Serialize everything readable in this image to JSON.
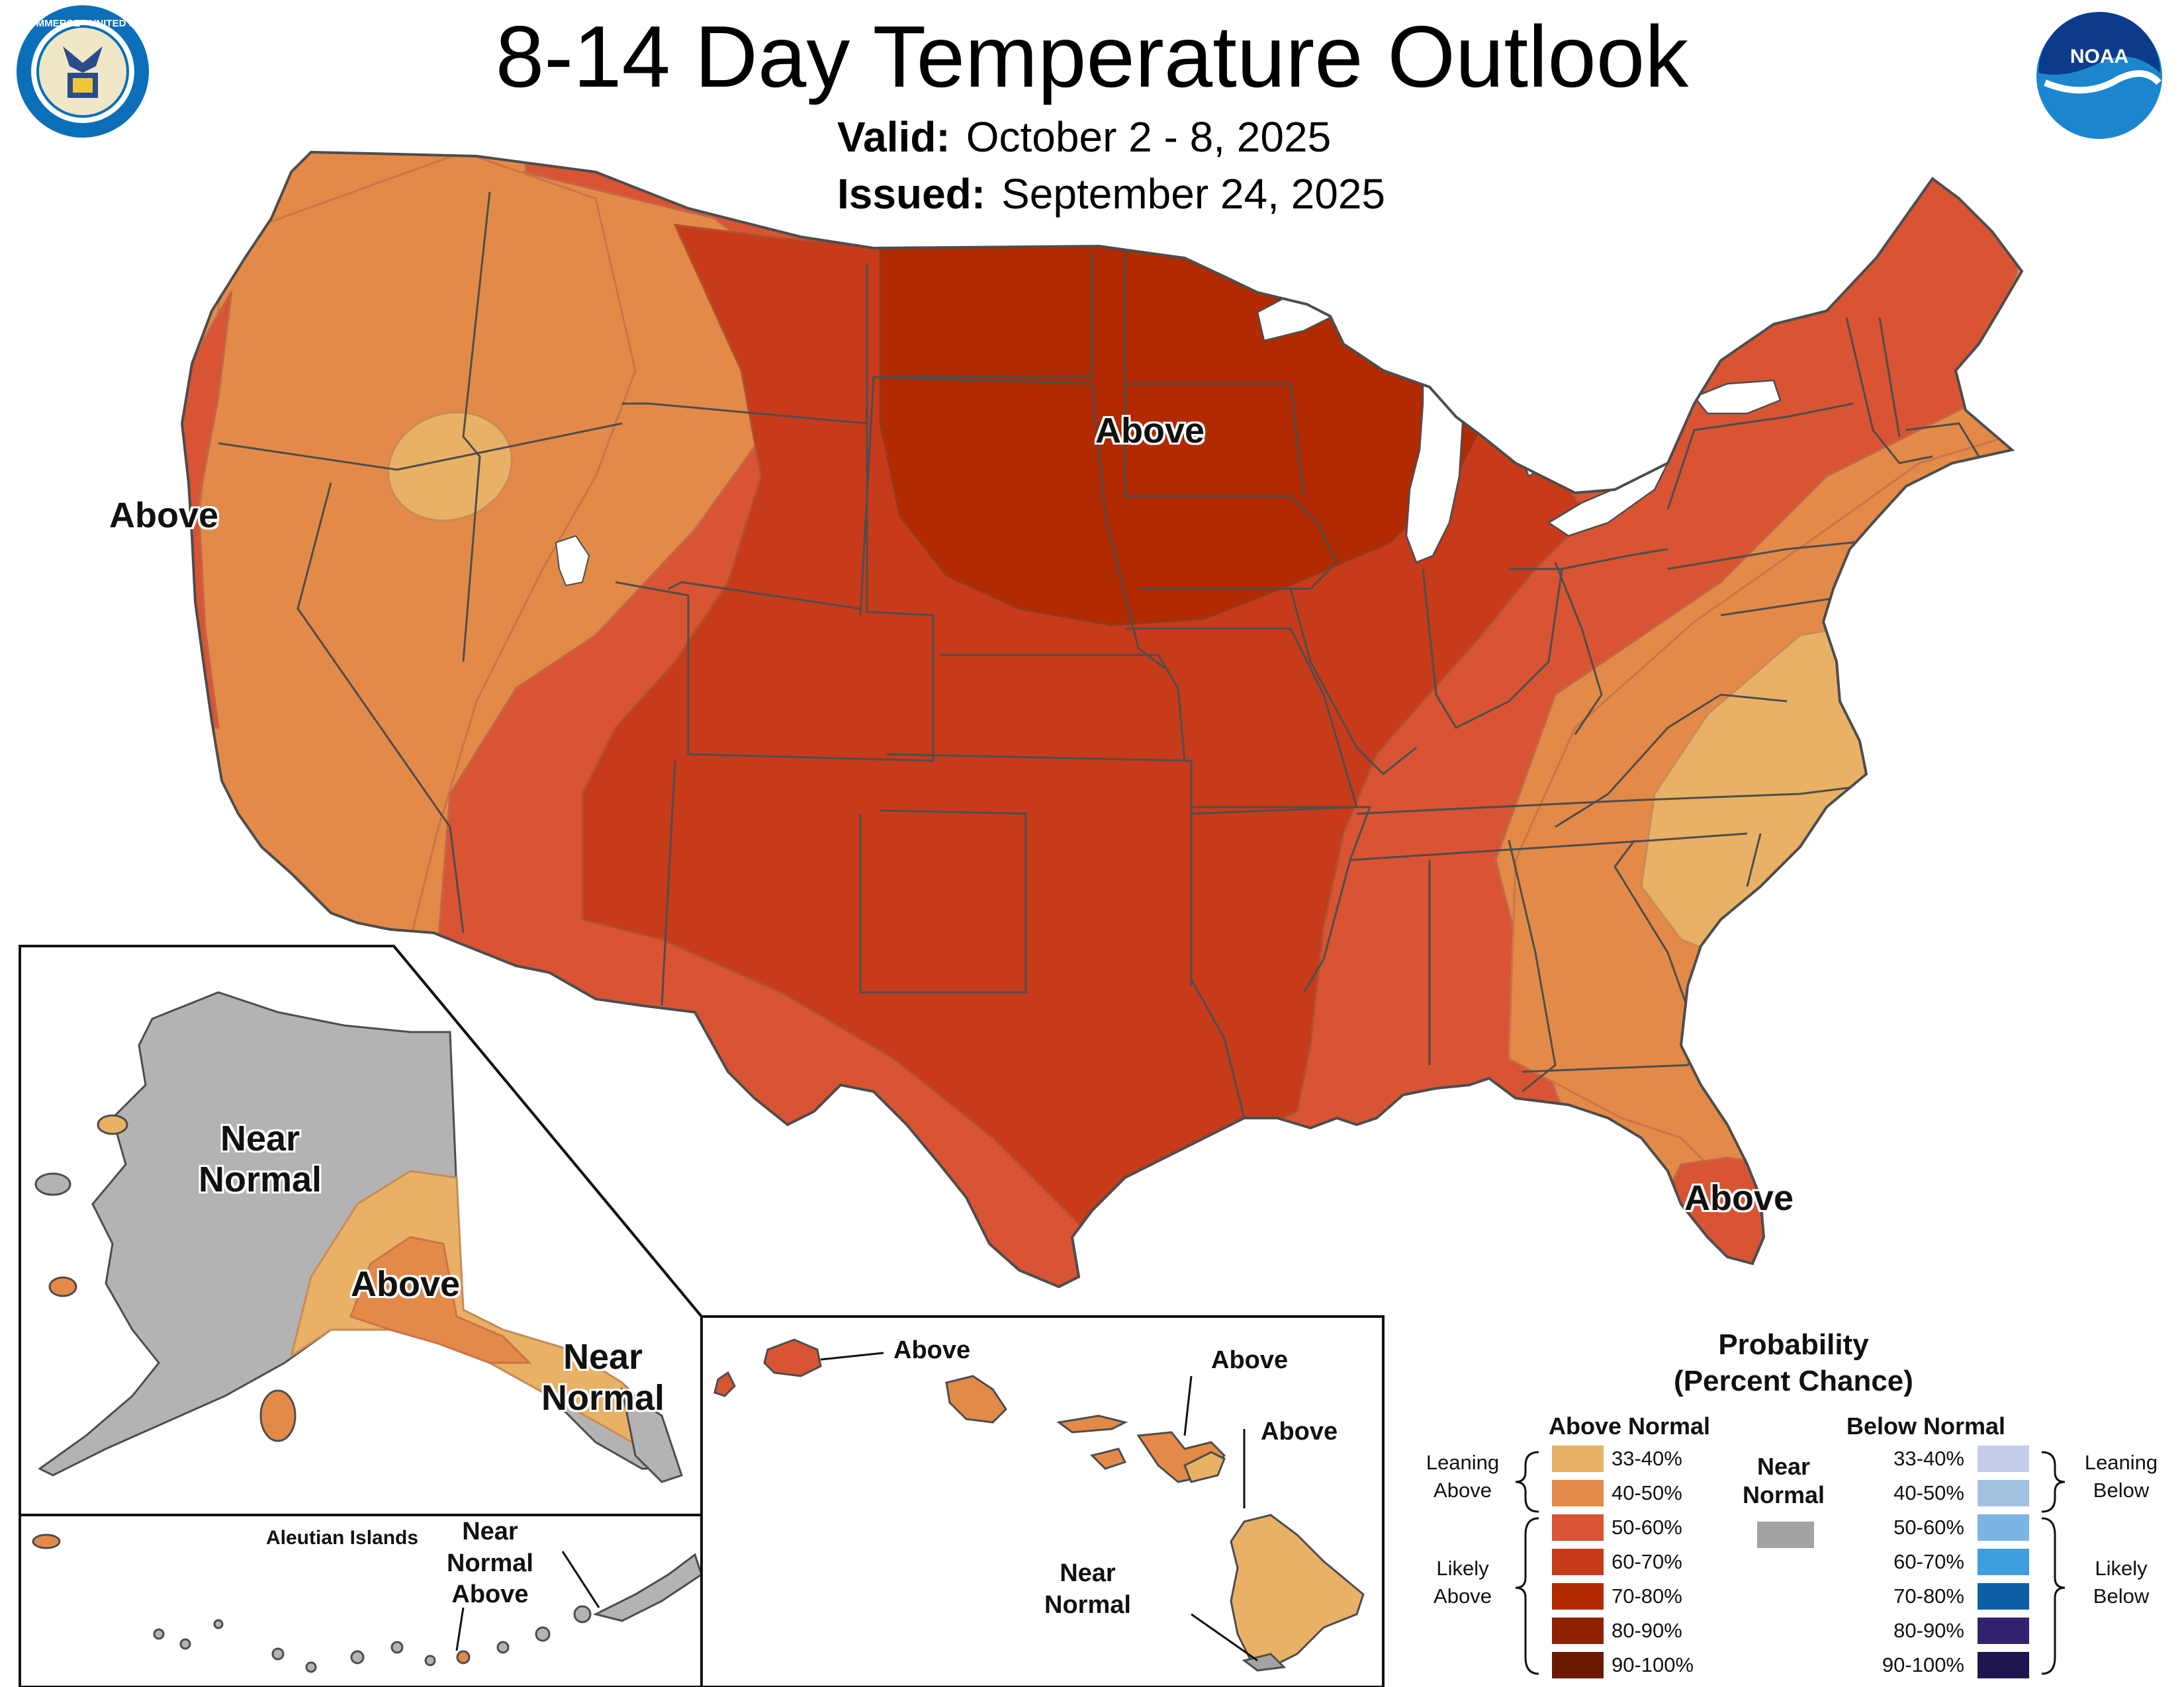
{
  "header": {
    "title": "8-14 Day Temperature Outlook",
    "valid_label": "Valid:",
    "valid_dates": "October 2 - 8, 2025",
    "issued_label": "Issued:",
    "issued_date": "September 24, 2025"
  },
  "logos": {
    "commerce_icon": "department-of-commerce-seal-icon",
    "commerce_text": "DEPARTMENT OF COMMERCE · UNITED STATES OF AMERICA",
    "noaa_icon": "noaa-logo-icon",
    "noaa_text": "NOAA"
  },
  "colors": {
    "above": [
      "#e8b165",
      "#e38a48",
      "#d95433",
      "#c73a1a",
      "#b12a00",
      "#8f2100",
      "#6b1a00"
    ],
    "below": [
      "#c3cde9",
      "#a2c1e1",
      "#7cb5e3",
      "#3f9fde",
      "#0c5fa5",
      "#33236f",
      "#1f1650"
    ],
    "near_normal": "#a3a3a3",
    "alaska_near_normal": "#b3b3b3",
    "water": "#ffffff",
    "border": "#4d4d4d"
  },
  "map_labels": {
    "conus_west": "Above",
    "conus_north": "Above",
    "conus_florida": "Above",
    "alaska_near_normal": "Near\nNormal",
    "alaska_above": "Above",
    "alaska_southeast": "Near\nNormal",
    "aleutian_title": "Aleutian Islands",
    "aleutian_label": "Near\nNormal\nAbove",
    "hawaii_kauai": "Above",
    "hawaii_maui": "Above",
    "hawaii_bigisland_above": "Above",
    "hawaii_bigisland_near": "Near\nNormal"
  },
  "legend": {
    "title": "Probability\n(Percent Chance)",
    "above_header": "Above Normal",
    "below_header": "Below Normal",
    "near_header": "Near\nNormal",
    "ranges": [
      "33-40%",
      "40-50%",
      "50-60%",
      "60-70%",
      "70-80%",
      "80-90%",
      "90-100%"
    ],
    "leaning_above": "Leaning\nAbove",
    "likely_above": "Likely\nAbove",
    "leaning_below": "Leaning\nBelow",
    "likely_below": "Likely\nBelow"
  }
}
